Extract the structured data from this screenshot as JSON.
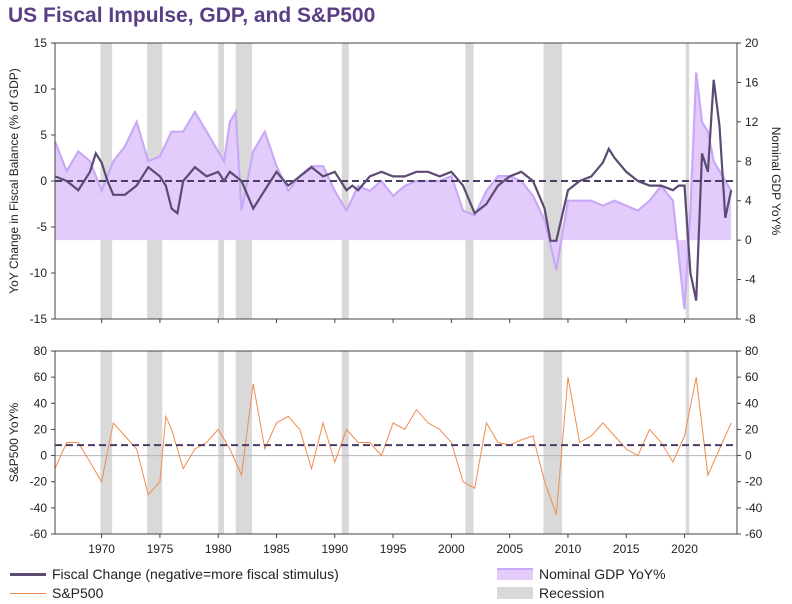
{
  "title": "US Fiscal Impulse, GDP, and S&P500",
  "chart_data": [
    {
      "type": "line",
      "panel": "top",
      "ylabel_left": "YoY Change in Fiscal Balance (% of GDP)",
      "ylabel_right": "Nominal GDP YoY%",
      "ylim_left": [
        -15,
        15
      ],
      "ylim_right": [
        -8,
        20
      ],
      "yticks_left": [
        15,
        10,
        5,
        0,
        -5,
        -10,
        -15
      ],
      "yticks_right": [
        20,
        16,
        12,
        8,
        4,
        0,
        -4,
        -8
      ],
      "xlim": [
        1966,
        2024.5
      ],
      "reference_line_left": 0,
      "series": [
        {
          "name": "Fiscal Change (negative=more fiscal stimulus)",
          "axis": "left",
          "color": "#5c4a72",
          "points": [
            [
              1966,
              0.5
            ],
            [
              1967,
              0
            ],
            [
              1968,
              -1
            ],
            [
              1969,
              1
            ],
            [
              1969.5,
              3
            ],
            [
              1970,
              2
            ],
            [
              1970.5,
              0
            ],
            [
              1971,
              -1.5
            ],
            [
              1972,
              -1.5
            ],
            [
              1973,
              -0.5
            ],
            [
              1974,
              1.5
            ],
            [
              1975,
              0.5
            ],
            [
              1975.5,
              -0.5
            ],
            [
              1976,
              -3
            ],
            [
              1976.5,
              -3.5
            ],
            [
              1977,
              0
            ],
            [
              1978,
              1.5
            ],
            [
              1979,
              0.5
            ],
            [
              1980,
              1
            ],
            [
              1980.5,
              0
            ],
            [
              1981,
              1
            ],
            [
              1982,
              0
            ],
            [
              1983,
              -3
            ],
            [
              1984,
              -1
            ],
            [
              1985,
              1
            ],
            [
              1986,
              -0.5
            ],
            [
              1987,
              0.5
            ],
            [
              1988,
              1.5
            ],
            [
              1989,
              0.5
            ],
            [
              1990,
              1
            ],
            [
              1991,
              -1
            ],
            [
              1991.5,
              -0.5
            ],
            [
              1992,
              -1
            ],
            [
              1993,
              0.5
            ],
            [
              1994,
              1
            ],
            [
              1995,
              0.5
            ],
            [
              1996,
              0.5
            ],
            [
              1997,
              1
            ],
            [
              1998,
              1
            ],
            [
              1999,
              0.5
            ],
            [
              2000,
              1
            ],
            [
              2001,
              -0.5
            ],
            [
              2002,
              -3.5
            ],
            [
              2003,
              -2.5
            ],
            [
              2004,
              -0.5
            ],
            [
              2005,
              0.5
            ],
            [
              2006,
              1
            ],
            [
              2007,
              0
            ],
            [
              2008,
              -3
            ],
            [
              2008.5,
              -6.5
            ],
            [
              2009,
              -6.5
            ],
            [
              2010,
              -1
            ],
            [
              2011,
              0
            ],
            [
              2012,
              0.5
            ],
            [
              2013,
              2
            ],
            [
              2013.5,
              3.5
            ],
            [
              2014,
              2.5
            ],
            [
              2015,
              1
            ],
            [
              2016,
              0
            ],
            [
              2017,
              -0.5
            ],
            [
              2018,
              -0.5
            ],
            [
              2019,
              -1
            ],
            [
              2019.5,
              -0.5
            ],
            [
              2020,
              -0.5
            ],
            [
              2020.5,
              -10
            ],
            [
              2021,
              -13
            ],
            [
              2021.5,
              3
            ],
            [
              2022,
              1
            ],
            [
              2022.5,
              11
            ],
            [
              2023,
              6
            ],
            [
              2023.5,
              -4
            ],
            [
              2024,
              -1
            ]
          ]
        },
        {
          "name": "Nominal GDP YoY%",
          "axis": "right",
          "color": "#c9a9f7",
          "type": "area",
          "points": [
            [
              1966,
              10
            ],
            [
              1967,
              7
            ],
            [
              1968,
              9
            ],
            [
              1969,
              8
            ],
            [
              1970,
              5
            ],
            [
              1971,
              8
            ],
            [
              1972,
              9.5
            ],
            [
              1973,
              12
            ],
            [
              1974,
              8
            ],
            [
              1975,
              8.5
            ],
            [
              1976,
              11
            ],
            [
              1977,
              11
            ],
            [
              1978,
              13
            ],
            [
              1979,
              11
            ],
            [
              1980,
              9
            ],
            [
              1980.5,
              8
            ],
            [
              1981,
              12
            ],
            [
              1981.5,
              13
            ],
            [
              1982,
              3
            ],
            [
              1983,
              9
            ],
            [
              1984,
              11
            ],
            [
              1985,
              7.5
            ],
            [
              1986,
              5
            ],
            [
              1987,
              6.5
            ],
            [
              1988,
              7.5
            ],
            [
              1989,
              7.5
            ],
            [
              1990,
              5
            ],
            [
              1991,
              3
            ],
            [
              1992,
              5.5
            ],
            [
              1993,
              5
            ],
            [
              1994,
              6
            ],
            [
              1995,
              4.5
            ],
            [
              1996,
              5.5
            ],
            [
              1997,
              6
            ],
            [
              1998,
              6
            ],
            [
              1999,
              6
            ],
            [
              2000,
              6.5
            ],
            [
              2001,
              3
            ],
            [
              2002,
              2.5
            ],
            [
              2003,
              5
            ],
            [
              2004,
              6.5
            ],
            [
              2005,
              6.5
            ],
            [
              2006,
              6
            ],
            [
              2007,
              4.5
            ],
            [
              2008,
              2
            ],
            [
              2009,
              -3
            ],
            [
              2010,
              4
            ],
            [
              2011,
              4
            ],
            [
              2012,
              4
            ],
            [
              2013,
              3.5
            ],
            [
              2014,
              4
            ],
            [
              2015,
              3.5
            ],
            [
              2016,
              3
            ],
            [
              2017,
              4
            ],
            [
              2018,
              5.5
            ],
            [
              2019,
              4
            ],
            [
              2020,
              -7
            ],
            [
              2020.5,
              3
            ],
            [
              2021,
              17
            ],
            [
              2021.5,
              12
            ],
            [
              2022,
              11
            ],
            [
              2022.5,
              8
            ],
            [
              2023,
              7
            ],
            [
              2024,
              5
            ]
          ]
        }
      ],
      "recessions": [
        [
          1969.9,
          1970.9
        ],
        [
          1973.9,
          1975.2
        ],
        [
          1980.0,
          1980.5
        ],
        [
          1981.5,
          1982.9
        ],
        [
          1990.6,
          1991.2
        ],
        [
          2001.2,
          2001.9
        ],
        [
          2007.9,
          2009.5
        ],
        [
          2020.1,
          2020.4
        ]
      ]
    },
    {
      "type": "line",
      "panel": "bottom",
      "ylabel_left": "S&P500 YoY%",
      "ylim": [
        -60,
        80
      ],
      "yticks": [
        80,
        60,
        40,
        20,
        0,
        -20,
        -40,
        -60
      ],
      "xlim": [
        1966,
        2024.5
      ],
      "xticks": [
        "1970",
        "1975",
        "1980",
        "1985",
        "1990",
        "1995",
        "2000",
        "2005",
        "2010",
        "2015",
        "2020"
      ],
      "mean_line": 8,
      "series": [
        {
          "name": "S&P500",
          "color": "#f08c50",
          "points": [
            [
              1966,
              -10
            ],
            [
              1967,
              10
            ],
            [
              1968,
              10
            ],
            [
              1969,
              -5
            ],
            [
              1970,
              -20
            ],
            [
              1971,
              25
            ],
            [
              1972,
              15
            ],
            [
              1973,
              5
            ],
            [
              1974,
              -30
            ],
            [
              1975,
              -20
            ],
            [
              1975.5,
              30
            ],
            [
              1976,
              20
            ],
            [
              1977,
              -10
            ],
            [
              1978,
              5
            ],
            [
              1979,
              10
            ],
            [
              1980,
              20
            ],
            [
              1981,
              5
            ],
            [
              1982,
              -15
            ],
            [
              1983,
              55
            ],
            [
              1984,
              5
            ],
            [
              1985,
              25
            ],
            [
              1986,
              30
            ],
            [
              1987,
              20
            ],
            [
              1988,
              -10
            ],
            [
              1989,
              25
            ],
            [
              1990,
              -5
            ],
            [
              1991,
              20
            ],
            [
              1992,
              10
            ],
            [
              1993,
              10
            ],
            [
              1994,
              0
            ],
            [
              1995,
              25
            ],
            [
              1996,
              20
            ],
            [
              1997,
              35
            ],
            [
              1998,
              25
            ],
            [
              1999,
              20
            ],
            [
              2000,
              10
            ],
            [
              2001,
              -20
            ],
            [
              2002,
              -25
            ],
            [
              2003,
              25
            ],
            [
              2004,
              10
            ],
            [
              2005,
              8
            ],
            [
              2006,
              12
            ],
            [
              2007,
              15
            ],
            [
              2008,
              -20
            ],
            [
              2009,
              -45
            ],
            [
              2010,
              60
            ],
            [
              2011,
              10
            ],
            [
              2012,
              15
            ],
            [
              2013,
              25
            ],
            [
              2014,
              15
            ],
            [
              2015,
              5
            ],
            [
              2016,
              0
            ],
            [
              2017,
              20
            ],
            [
              2018,
              10
            ],
            [
              2019,
              -5
            ],
            [
              2020,
              15
            ],
            [
              2021,
              60
            ],
            [
              2022,
              -15
            ],
            [
              2023,
              5
            ],
            [
              2024,
              25
            ]
          ]
        }
      ],
      "recessions": [
        [
          1969.9,
          1970.9
        ],
        [
          1973.9,
          1975.2
        ],
        [
          1980.0,
          1980.5
        ],
        [
          1981.5,
          1982.9
        ],
        [
          1990.6,
          1991.2
        ],
        [
          2001.2,
          2001.9
        ],
        [
          2007.9,
          2009.5
        ],
        [
          2020.1,
          2020.4
        ]
      ]
    }
  ],
  "legend": {
    "fiscal": "Fiscal Change (negative=more fiscal stimulus)",
    "gdp": "Nominal GDP YoY%",
    "sp500": "S&P500",
    "recession": "Recession"
  },
  "colors": {
    "title": "#5b3f86",
    "fiscal": "#5c4a72",
    "gdp_fill": "#e3ccfc",
    "gdp_line": "#c9a9f7",
    "sp500": "#f08c50",
    "recession": "#d9d9d9",
    "dashed": "#4a3f63"
  }
}
